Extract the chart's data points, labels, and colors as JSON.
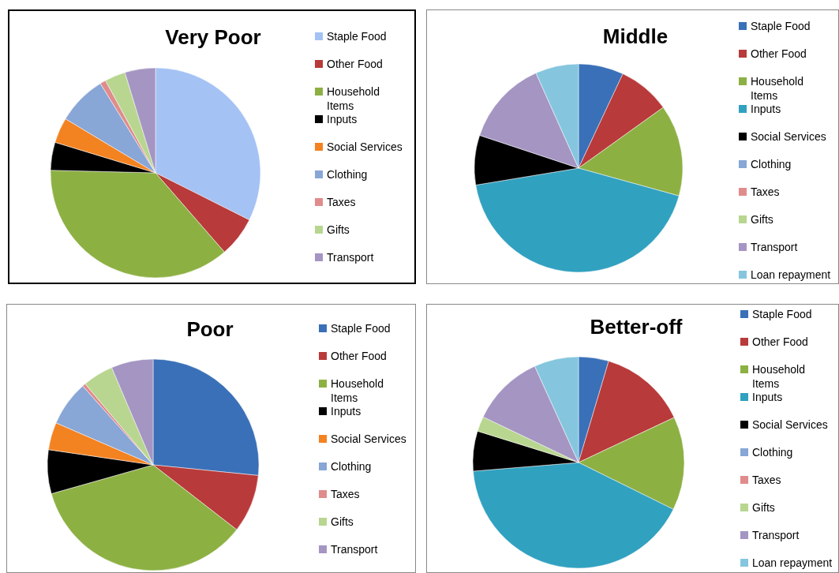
{
  "chart_data": [
    {
      "type": "pie",
      "title": "Very Poor",
      "legend": "right",
      "categories": [
        "Staple Food",
        "Other Food",
        "Household Items",
        "Inputs",
        "Social Services",
        "Clothing",
        "Taxes",
        "Gifts",
        "Transport"
      ],
      "values": [
        32.4,
        6.2,
        36.8,
        4.3,
        3.9,
        7.6,
        0.9,
        3.2,
        4.7
      ],
      "colors": [
        "#a4c2f4",
        "#b83a3a",
        "#8db043",
        "#000000",
        "#f38221",
        "#88a6d6",
        "#e08c8c",
        "#b8d690",
        "#a595c2"
      ]
    },
    {
      "type": "pie",
      "title": "Middle",
      "legend": "right",
      "categories": [
        "Staple Food",
        "Other Food",
        "Household Items",
        "Inputs",
        "Social Services",
        "Clothing",
        "Taxes",
        "Gifts",
        "Transport",
        "Loan repayment"
      ],
      "values": [
        7.0,
        8.1,
        14.2,
        43.1,
        7.7,
        0,
        0,
        0,
        13.2,
        6.7
      ],
      "colors": [
        "#3a70b8",
        "#b83a3a",
        "#8db043",
        "#31a1c0",
        "#000000",
        "#88a6d6",
        "#e08c8c",
        "#b8d690",
        "#a595c2",
        "#85c6de"
      ]
    },
    {
      "type": "pie",
      "title": "Poor",
      "legend": "right",
      "categories": [
        "Staple Food",
        "Other Food",
        "Household Items",
        "Inputs",
        "Social Services",
        "Clothing",
        "Taxes",
        "Gifts",
        "Transport"
      ],
      "values": [
        26.6,
        8.9,
        35.1,
        6.7,
        4.2,
        6.9,
        0.5,
        4.7,
        6.4
      ],
      "colors": [
        "#3a70b8",
        "#b83a3a",
        "#8db043",
        "#000000",
        "#f38221",
        "#88a6d6",
        "#e08c8c",
        "#b8d690",
        "#a595c2"
      ]
    },
    {
      "type": "pie",
      "title": "Better-off",
      "legend": "right",
      "categories": [
        "Staple Food",
        "Other Food",
        "Household Items",
        "Inputs",
        "Social Services",
        "Clothing",
        "Taxes",
        "Gifts",
        "Transport",
        "Loan repayment"
      ],
      "values": [
        4.6,
        13.4,
        14.3,
        41.4,
        6.1,
        0,
        0,
        2.3,
        11.1,
        6.8
      ],
      "colors": [
        "#3a70b8",
        "#b83a3a",
        "#8db043",
        "#31a1c0",
        "#000000",
        "#88a6d6",
        "#e08c8c",
        "#b8d690",
        "#a595c2",
        "#85c6de"
      ]
    }
  ]
}
